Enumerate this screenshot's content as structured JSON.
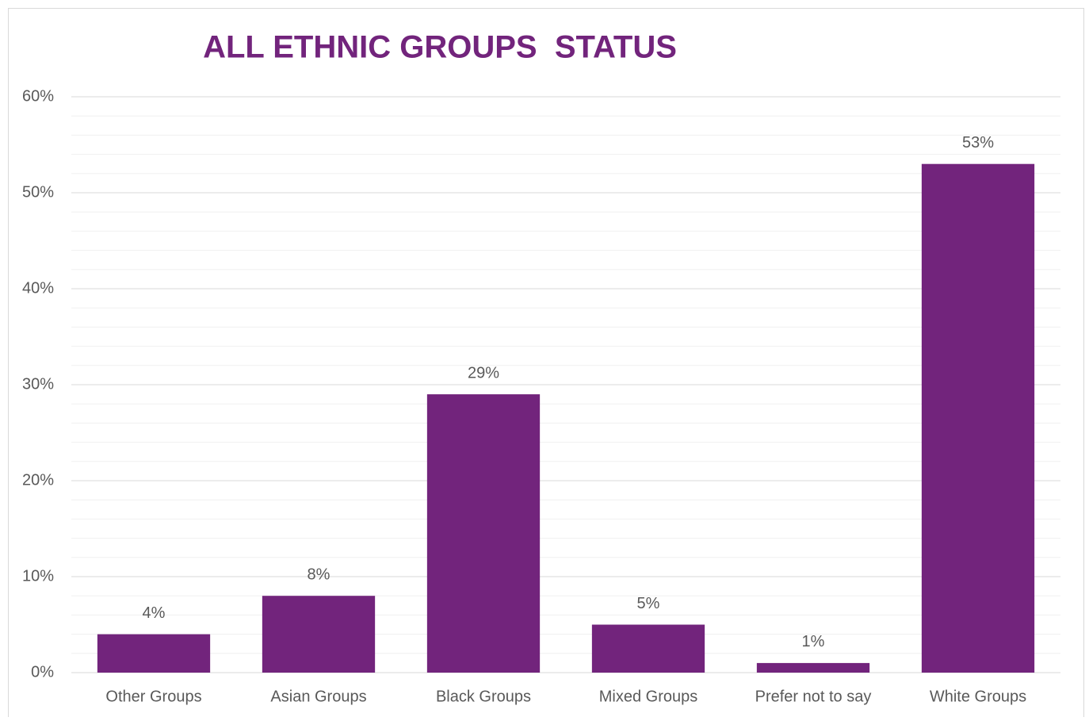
{
  "chart_data": {
    "type": "bar",
    "title": "ALL ETHNIC GROUPS  STATUS",
    "categories": [
      "Other Groups",
      "Asian Groups",
      "Black Groups",
      "Mixed Groups",
      "Prefer not to say",
      "White Groups"
    ],
    "values": [
      4,
      8,
      29,
      5,
      1,
      53
    ],
    "value_labels": [
      "4%",
      "8%",
      "29%",
      "5%",
      "1%",
      "53%"
    ],
    "color": "#72247c",
    "ylim": [
      0,
      60
    ],
    "yticks": [
      {
        "value": 0,
        "label": "0%"
      },
      {
        "value": 10,
        "label": "10%"
      },
      {
        "value": 20,
        "label": "20%"
      },
      {
        "value": 30,
        "label": "30%"
      },
      {
        "value": 40,
        "label": "40%"
      },
      {
        "value": 50,
        "label": "50%"
      },
      {
        "value": 60,
        "label": "60%"
      }
    ],
    "minor_yticks": [
      2,
      4,
      6,
      8,
      12,
      14,
      16,
      18,
      22,
      24,
      26,
      28,
      32,
      34,
      36,
      38,
      42,
      44,
      46,
      48,
      52,
      54,
      56,
      58
    ],
    "grid": true
  }
}
